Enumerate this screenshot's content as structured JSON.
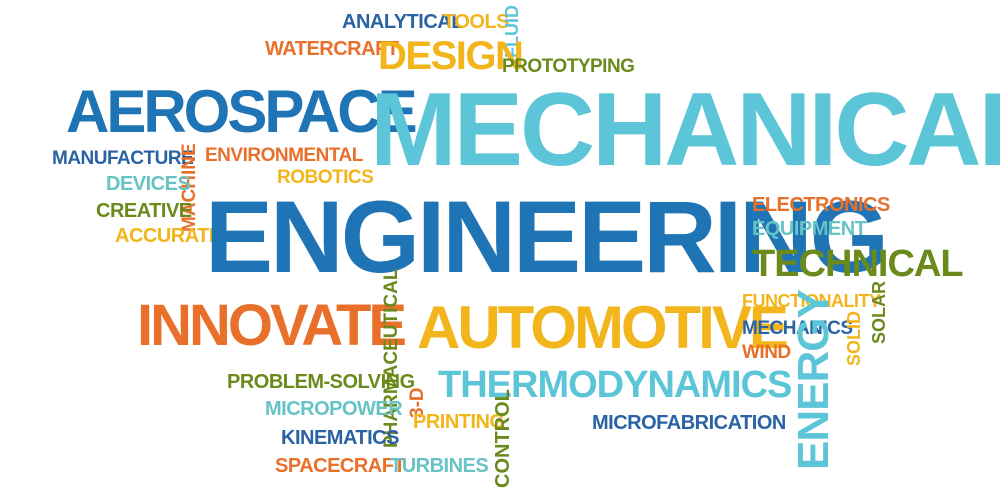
{
  "cloud": {
    "words": [
      {
        "text": "ANALYTICAL",
        "color": "#2a63a4"
      },
      {
        "text": "TOOLS",
        "color": "#f2b51c"
      },
      {
        "text": "FLUID",
        "color": "#5cc6d8"
      },
      {
        "text": "WATERCRAFT",
        "color": "#e8702a"
      },
      {
        "text": "DESIGN",
        "color": "#f2b51c"
      },
      {
        "text": "PROTOTYPING",
        "color": "#6b8a1c"
      },
      {
        "text": "AEROSPACE",
        "color": "#1f74b5"
      },
      {
        "text": "MECHANICAL",
        "color": "#5cc6d8"
      },
      {
        "text": "MANUFACTURE",
        "color": "#2a63a4"
      },
      {
        "text": "MACHINE",
        "color": "#e8702a"
      },
      {
        "text": "ENVIRONMENTAL",
        "color": "#e8702a"
      },
      {
        "text": "DEVICES",
        "color": "#67c3c4"
      },
      {
        "text": "ROBOTICS",
        "color": "#f2b51c"
      },
      {
        "text": "CREATIVE",
        "color": "#6b8a1c"
      },
      {
        "text": "ACCURATE",
        "color": "#f2b51c"
      },
      {
        "text": "ENGINEERING",
        "color": "#1f74b5"
      },
      {
        "text": "ELECTRONICS",
        "color": "#e8702a"
      },
      {
        "text": "EQUIPMENT",
        "color": "#67c3c4"
      },
      {
        "text": "TECHNICAL",
        "color": "#6b8a1c"
      },
      {
        "text": "FUNCTIONALITY",
        "color": "#f2b51c"
      },
      {
        "text": "INNOVATE",
        "color": "#e8702a"
      },
      {
        "text": "PHARMACEUTICAL",
        "color": "#6b8a1c"
      },
      {
        "text": "AUTOMOTIVE",
        "color": "#f2b51c"
      },
      {
        "text": "MECHANICS",
        "color": "#2a63a4"
      },
      {
        "text": "SOLID",
        "color": "#f2b51c"
      },
      {
        "text": "SOLAR",
        "color": "#6b8a1c"
      },
      {
        "text": "WIND",
        "color": "#e8702a"
      },
      {
        "text": "PROBLEM-SOLVING",
        "color": "#6b8a1c"
      },
      {
        "text": "THERMODYNAMICS",
        "color": "#5cc6d8"
      },
      {
        "text": "ENERGY",
        "color": "#5cc6d8"
      },
      {
        "text": "MICROPOWER",
        "color": "#67c3c4"
      },
      {
        "text": "3-D",
        "color": "#e8702a"
      },
      {
        "text": "PRINTING",
        "color": "#f2b51c"
      },
      {
        "text": "MICROFABRICATION",
        "color": "#2a63a4"
      },
      {
        "text": "KINEMATICS",
        "color": "#2a63a4"
      },
      {
        "text": "CONTROL",
        "color": "#6b8a1c"
      },
      {
        "text": "SPACECRAFT",
        "color": "#e8702a"
      },
      {
        "text": "TURBINES",
        "color": "#67c3c4"
      }
    ]
  }
}
